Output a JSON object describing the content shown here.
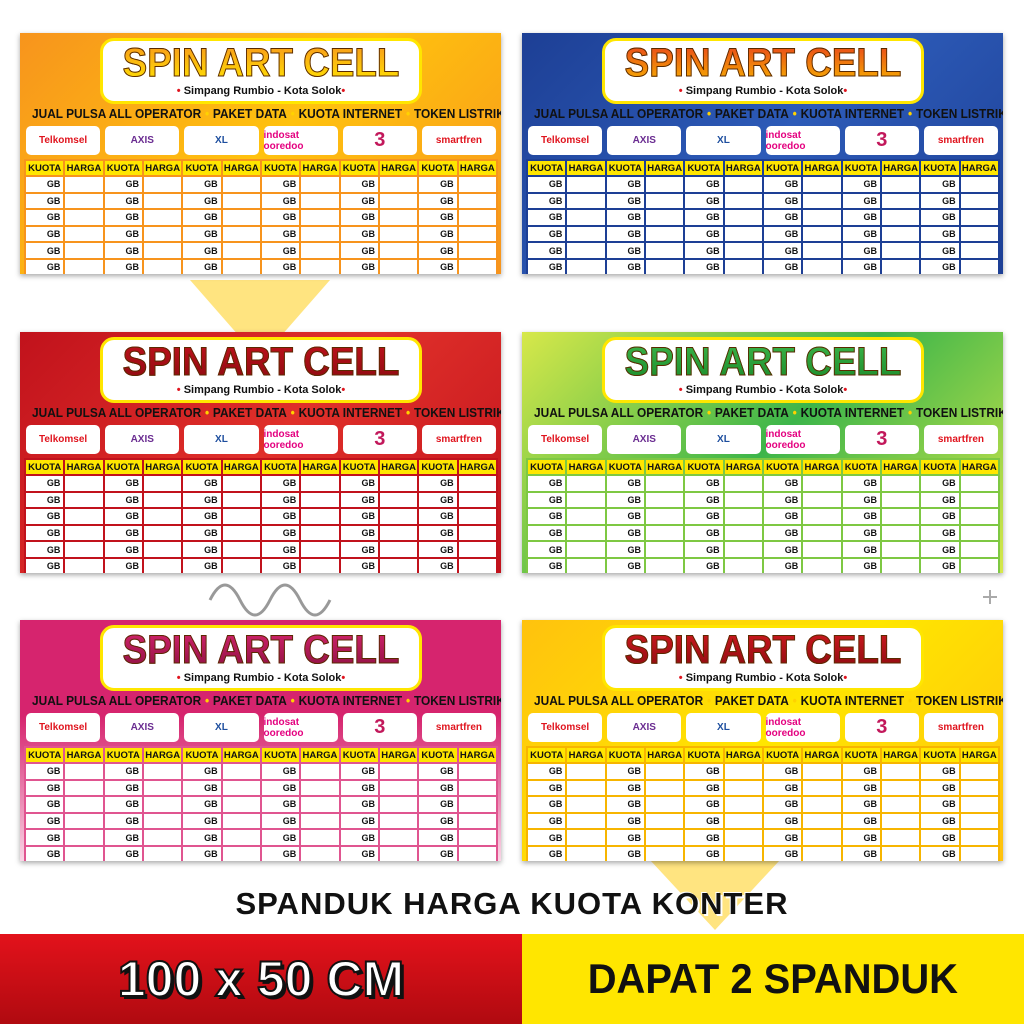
{
  "banner_common": {
    "title": "SPIN ART CELL",
    "subtitle": "Simpang Rumbio - Kota Solok",
    "taglines": [
      "JUAL PULSA ALL OPERATOR",
      "PAKET DATA",
      "KUOTA INTERNET",
      "TOKEN LISTRIK"
    ],
    "operators": [
      "Telkomsel",
      "AXIS",
      "XL",
      "indosat ooredoo",
      "3",
      "smartfren"
    ],
    "column_headers": [
      "KUOTA",
      "HARGA"
    ],
    "row_unit": "GB",
    "row_count": 6
  },
  "banners": [
    {
      "theme": "orange",
      "bg": "#f7941d",
      "bg2": "#ffc20e",
      "title_color": "#f7941d",
      "title_color2": "#ffe600",
      "line": "#f7941d"
    },
    {
      "theme": "blue",
      "bg": "#1d3f95",
      "bg2": "#2d5bb8",
      "title_color": "#e8401c",
      "title_color2": "#f7b500",
      "line": "#1d3f95"
    },
    {
      "theme": "red",
      "bg": "#c1121c",
      "bg2": "#e0302a",
      "title_color": "#c1121c",
      "title_color2": "#8a0a10",
      "line": "#c1121c"
    },
    {
      "theme": "green",
      "bg": "#d7e84a",
      "bg2": "#3cb54a",
      "title_color": "#3cb54a",
      "title_color2": "#1a8a2a",
      "line": "#7ec843"
    },
    {
      "theme": "pink",
      "bg": "#d6246e",
      "bg2": "#f9d6e6",
      "title_color": "#d6246e",
      "title_color2": "#8a1040",
      "line": "#e05590"
    },
    {
      "theme": "yellow",
      "bg": "#ffc20e",
      "bg2": "#ffe600",
      "title_color": "#d11a1f",
      "title_color2": "#8a0a10",
      "line": "#f7b500"
    }
  ],
  "footer": {
    "caption": "SPANDUK HARGA KUOTA KONTER",
    "size": "100 x 50 CM",
    "bonus": "DAPAT 2 SPANDUK",
    "red": "#e3121b",
    "yellow": "#ffe600"
  }
}
